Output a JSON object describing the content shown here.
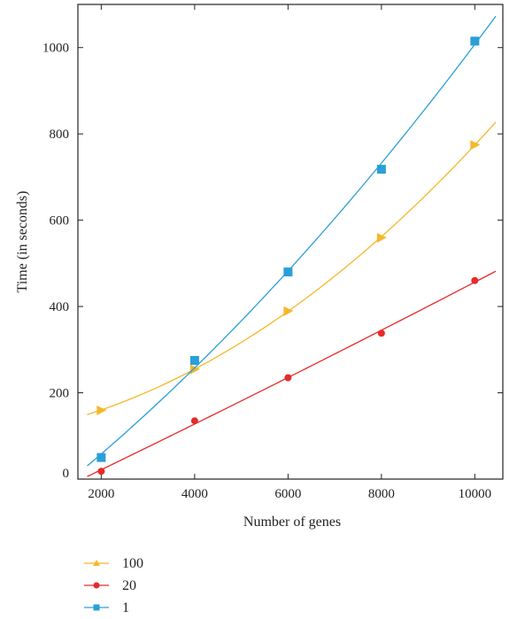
{
  "chart_data": {
    "type": "line",
    "title": "",
    "xlabel": "Number of genes",
    "ylabel": "Time (in seconds)",
    "xlim": [
      1500,
      10600
    ],
    "ylim": [
      0,
      1100
    ],
    "xticks": [
      2000,
      4000,
      6000,
      8000,
      10000
    ],
    "yticks": [
      0,
      200,
      400,
      600,
      800,
      1000
    ],
    "xtick_labels": [
      "2000",
      "4000",
      "6000",
      "8000",
      "10000"
    ],
    "ytick_labels": [
      "0",
      "200",
      "400",
      "600",
      "800",
      "1000"
    ],
    "grid": false,
    "legend_position": "bottom-left, below plot",
    "series": [
      {
        "name": "100",
        "color": "#f5b82a",
        "marker": "triangle",
        "x": [
          2000,
          4000,
          6000,
          8000,
          10000
        ],
        "y": [
          160,
          255,
          390,
          560,
          775
        ],
        "fit_x": [
          1700,
          10450
        ],
        "fit_y": [
          136,
          835
        ]
      },
      {
        "name": "20",
        "color": "#e62a2a",
        "marker": "circle",
        "x": [
          2000,
          4000,
          6000,
          8000,
          10000
        ],
        "y": [
          18,
          135,
          235,
          338,
          460
        ],
        "fit_x": [
          1700,
          10450
        ],
        "fit_y": [
          10,
          488
        ]
      },
      {
        "name": "1",
        "color": "#2a9fd8",
        "marker": "square",
        "x": [
          2000,
          4000,
          6000,
          8000,
          10000
        ],
        "y": [
          50,
          275,
          480,
          718,
          1015
        ],
        "fit_x": [
          1700,
          10450
        ],
        "fit_y": [
          20,
          1085
        ]
      }
    ]
  }
}
